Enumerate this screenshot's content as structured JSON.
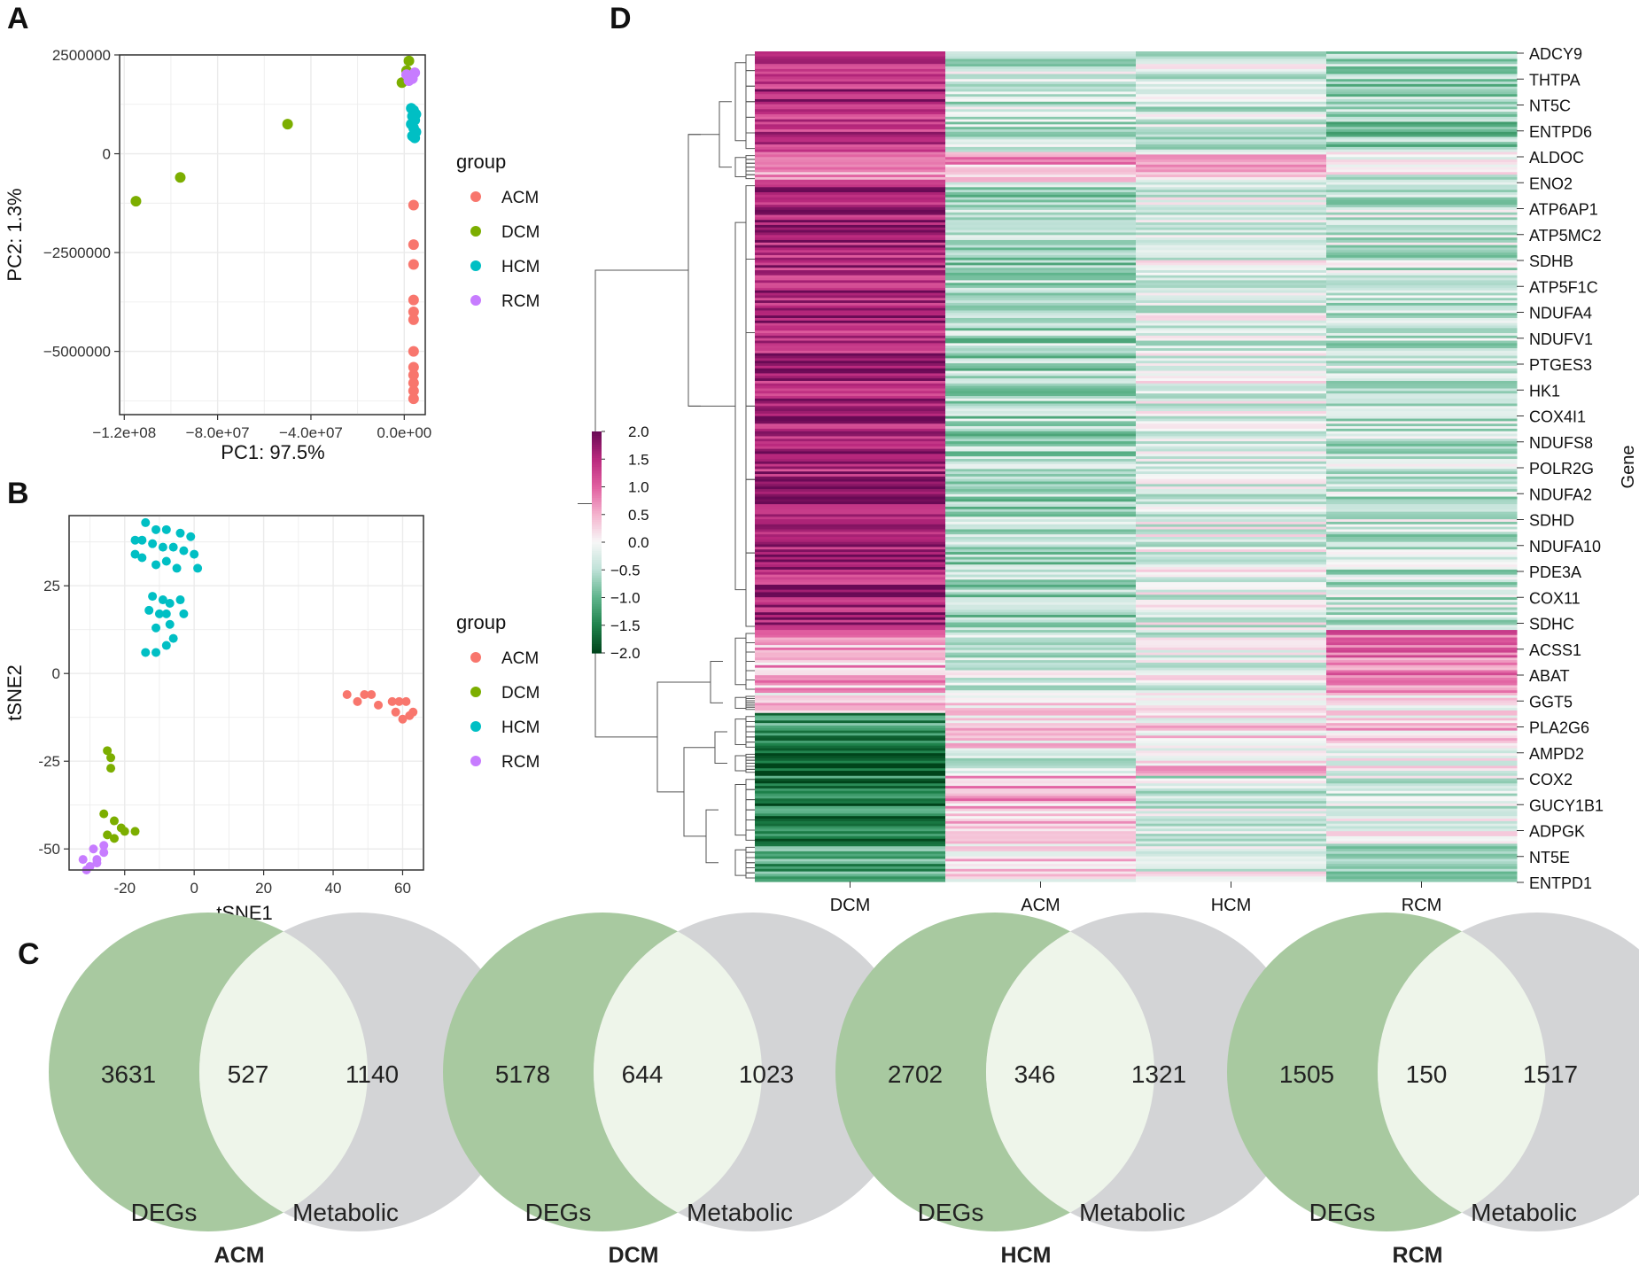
{
  "panels": [
    {
      "id": "A",
      "label": "A"
    },
    {
      "id": "B",
      "label": "B"
    },
    {
      "id": "C",
      "label": "C"
    },
    {
      "id": "D",
      "label": "D"
    }
  ],
  "colors": {
    "ACM": "#F8766D",
    "DCM": "#7CAE00",
    "HCM": "#00BFC4",
    "RCM": "#C77CFF",
    "venn_degs": "#a8c9a0",
    "venn_metabolic": "#d3d4d6",
    "venn_overlap": "#eef5ea"
  },
  "chart_data": [
    {
      "id": "pca",
      "type": "scatter",
      "xlabel": "PC1: 97.5%",
      "ylabel": "PC2: 1.3%",
      "xlim": [
        -122000000,
        9000000
      ],
      "ylim": [
        -6600000,
        2500000
      ],
      "xticks": [
        -120000000,
        -80000000,
        -40000000,
        0
      ],
      "xtick_labels": [
        "−1.2e+08",
        "−8.0e+07",
        "−4.0e+07",
        "0.0e+00"
      ],
      "yticks": [
        2500000,
        0,
        -2500000,
        -5000000
      ],
      "ytick_labels": [
        "2500000",
        "0",
        "−2500000",
        "−5000000"
      ],
      "grid": true,
      "legend": {
        "title": "group",
        "position": "right",
        "entries": [
          "ACM",
          "DCM",
          "HCM",
          "RCM"
        ]
      },
      "series": [
        {
          "name": "ACM",
          "x": [
            4000000,
            4000000,
            4000000,
            4000000,
            4000000,
            4000000,
            4000000,
            4000000,
            4000000,
            4000000,
            4000000,
            4000000
          ],
          "y": [
            -1300000,
            -2300000,
            -2800000,
            -3700000,
            -4000000,
            -4200000,
            -5000000,
            -5400000,
            -5600000,
            -5800000,
            -6000000,
            -6200000
          ]
        },
        {
          "name": "DCM",
          "x": [
            -115000000,
            -96000000,
            -50000000,
            -1000000,
            2000000,
            1000000
          ],
          "y": [
            -1200000,
            -600000,
            750000,
            1800000,
            2350000,
            2100000
          ]
        },
        {
          "name": "HCM",
          "x": [
            3000000,
            4000000,
            5000000,
            3500000,
            4500000,
            3000000,
            4000000,
            5000000,
            3500000,
            4500000
          ],
          "y": [
            1150000,
            1100000,
            1000000,
            950000,
            850000,
            750000,
            650000,
            550000,
            450000,
            400000
          ]
        },
        {
          "name": "RCM",
          "x": [
            1000000,
            2500000,
            3500000,
            4500000,
            2000000
          ],
          "y": [
            2000000,
            1950000,
            1900000,
            2050000,
            1850000
          ]
        }
      ]
    },
    {
      "id": "tsne",
      "type": "scatter",
      "xlabel": "tSNE1",
      "ylabel": "tSNE2",
      "xlim": [
        -36,
        66
      ],
      "ylim": [
        -56,
        45
      ],
      "xticks": [
        -20,
        0,
        20,
        40,
        60
      ],
      "yticks": [
        25,
        0,
        -25,
        -50
      ],
      "grid": true,
      "legend": {
        "title": "group",
        "position": "right",
        "entries": [
          "ACM",
          "DCM",
          "HCM",
          "RCM"
        ]
      },
      "series": [
        {
          "name": "ACM",
          "x": [
            44,
            47,
            49,
            51,
            53,
            57,
            59,
            61,
            63,
            58,
            60,
            62
          ],
          "y": [
            -6,
            -8,
            -6,
            -6,
            -9,
            -8,
            -8,
            -8,
            -11,
            -11,
            -13,
            -12
          ]
        },
        {
          "name": "DCM",
          "x": [
            -25,
            -24,
            -24,
            -26,
            -23,
            -21,
            -25,
            -23,
            -20,
            -17
          ],
          "y": [
            -22,
            -24,
            -27,
            -40,
            -42,
            -44,
            -46,
            -47,
            -45,
            -45
          ]
        },
        {
          "name": "HCM",
          "x": [
            -14,
            -11,
            -8,
            -4,
            -1,
            -17,
            -15,
            -12,
            -9,
            -6,
            -3,
            0,
            -17,
            -15,
            -11,
            -8,
            -5,
            1,
            -12,
            -9,
            -7,
            -4,
            -13,
            -10,
            -8,
            -3,
            -11,
            -7,
            -6,
            -14,
            -11,
            -8
          ],
          "y": [
            43,
            41,
            41,
            40,
            39,
            38,
            38,
            37,
            36,
            36,
            35,
            34,
            34,
            33,
            31,
            32,
            30,
            30,
            22,
            21,
            20,
            21,
            18,
            17,
            17,
            17,
            13,
            14,
            10,
            6,
            6,
            8
          ]
        },
        {
          "name": "RCM",
          "x": [
            -32,
            -29,
            -28,
            -26,
            -30,
            -26,
            -28,
            -31
          ],
          "y": [
            -53,
            -50,
            -53,
            -51,
            -55,
            -49,
            -54,
            -56
          ]
        }
      ]
    },
    {
      "id": "venn",
      "type": "venn",
      "sets": [
        "DEGs",
        "Metabolic"
      ],
      "groups": [
        {
          "name": "ACM",
          "degs_only": "3631",
          "overlap": "527",
          "metabolic_only": "1140"
        },
        {
          "name": "DCM",
          "degs_only": "5178",
          "overlap": "644",
          "metabolic_only": "1023"
        },
        {
          "name": "HCM",
          "degs_only": "2702",
          "overlap": "346",
          "metabolic_only": "1321"
        },
        {
          "name": "RCM",
          "degs_only": "1505",
          "overlap": "150",
          "metabolic_only": "1517"
        }
      ]
    },
    {
      "id": "heatmap",
      "type": "heatmap",
      "columns": [
        "DCM",
        "ACM",
        "HCM",
        "RCM"
      ],
      "row_axis_label": "Gene",
      "row_labels": [
        "ADCY9",
        "THTPA",
        "NT5C",
        "ENTPD6",
        "ALDOC",
        "ENO2",
        "ATP6AP1",
        "ATP5MC2",
        "SDHB",
        "ATP5F1C",
        "NDUFA4",
        "NDUFV1",
        "PTGES3",
        "HK1",
        "COX4I1",
        "NDUFS8",
        "POLR2G",
        "NDUFA2",
        "SDHD",
        "NDUFA10",
        "PDE3A",
        "COX11",
        "SDHC",
        "ACSS1",
        "ABAT",
        "GGT5",
        "PLA2G6",
        "AMPD2",
        "COX2",
        "GUCY1B1",
        "ADPGK",
        "NT5E",
        "ENTPD1"
      ],
      "color_scale": {
        "range": [
          -2.0,
          2.0
        ],
        "ticks": [
          2.0,
          1.5,
          1.0,
          0.5,
          0.0,
          -0.5,
          -1.0,
          -1.5,
          -2.0
        ],
        "tick_labels": [
          "2.0",
          "1.5",
          "1.0",
          "0.5",
          "0.0",
          "−0.5",
          "−1.0",
          "−1.5",
          "−2.0"
        ]
      },
      "row_blocks": [
        {
          "rows": 40,
          "values": [
            1.5,
            -0.4,
            -0.3,
            -0.7
          ]
        },
        {
          "rows": 12,
          "values": [
            0.8,
            0.5,
            0.3,
            -0.2
          ]
        },
        {
          "rows": 178,
          "values": [
            1.6,
            -0.6,
            -0.2,
            -0.4
          ]
        },
        {
          "rows": 25,
          "values": [
            0.5,
            -0.3,
            -0.2,
            0.9
          ]
        },
        {
          "rows": 8,
          "values": [
            0.2,
            0.4,
            -0.1,
            0.0
          ]
        },
        {
          "rows": 15,
          "values": [
            -1.3,
            0.2,
            0.2,
            0.3
          ]
        },
        {
          "rows": 10,
          "values": [
            -2.0,
            -0.3,
            0.3,
            -0.1
          ]
        },
        {
          "rows": 27,
          "values": [
            -1.5,
            0.5,
            -0.3,
            -0.2
          ]
        },
        {
          "rows": 15,
          "values": [
            -1.2,
            0.2,
            -0.2,
            -0.6
          ]
        }
      ]
    }
  ]
}
